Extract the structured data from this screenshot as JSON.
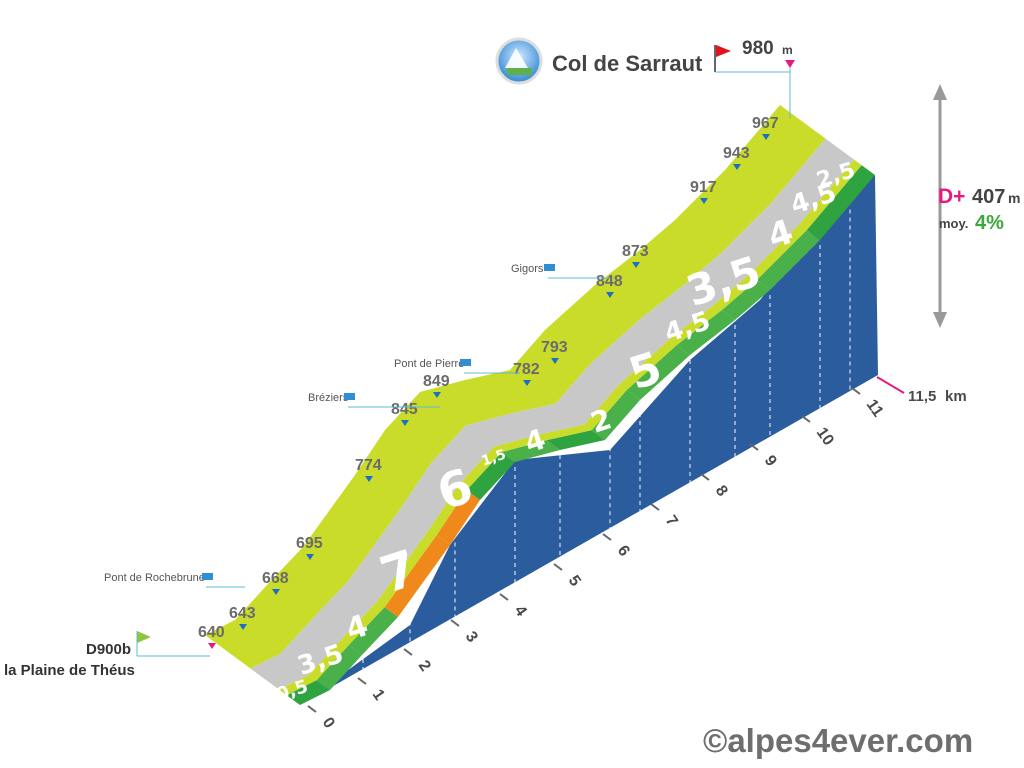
{
  "summit": {
    "name": "Col de Sarraut",
    "altitude": "980",
    "unit": "m"
  },
  "start": {
    "road": "D900b",
    "place": "la Plaine de Théus",
    "altitude": "640"
  },
  "totals": {
    "gain_label": "D+",
    "gain": "407",
    "gain_unit": "m",
    "avg_label": "moy.",
    "avg": "4%"
  },
  "distance": {
    "value": "11,5",
    "unit": "km"
  },
  "watermark": "©alpes4ever.com",
  "colors": {
    "gentle": "#2ea33f",
    "moderate": "#4ab04a",
    "steep": "#f0891c",
    "side": "#2b5d9e",
    "road": "#c8c8c8",
    "rim": "#c9dc2a",
    "accent": "#e6197f",
    "avg": "#3aa83a"
  },
  "chart_data": {
    "type": "area",
    "title": "Col de Sarraut",
    "x_label": "km",
    "km_ticks": [
      "0",
      "1",
      "2",
      "3",
      "4",
      "5",
      "6",
      "7",
      "8",
      "9",
      "10",
      "11"
    ],
    "gradient_per_km": [
      {
        "km": "0-0.5",
        "grade": "0,5",
        "color": "gentle"
      },
      {
        "km": "0.5-1",
        "grade": "3,5",
        "color": "moderate"
      },
      {
        "km": "1-2",
        "grade": "4",
        "color": "moderate"
      },
      {
        "km": "2-3",
        "grade": "7",
        "color": "steep"
      },
      {
        "km": "3-4",
        "grade": "6",
        "color": "steep"
      },
      {
        "km": "4-4.5",
        "grade": "1,5",
        "color": "gentle"
      },
      {
        "km": "4.5-5.5",
        "grade": "4",
        "color": "moderate"
      },
      {
        "km": "5.5-6",
        "grade": "2",
        "color": "gentle"
      },
      {
        "km": "6-7",
        "grade": "5",
        "color": "moderate"
      },
      {
        "km": "7-8",
        "grade": "4,5",
        "color": "moderate"
      },
      {
        "km": "8-9",
        "grade": "3,5",
        "color": "moderate"
      },
      {
        "km": "9-10",
        "grade": "4",
        "color": "moderate"
      },
      {
        "km": "10-11",
        "grade": "4,5",
        "color": "moderate"
      },
      {
        "km": "11-11.5",
        "grade": "2,5",
        "color": "gentle"
      }
    ],
    "altitude_markers": [
      "640",
      "643",
      "668",
      "695",
      "774",
      "845",
      "849",
      "782",
      "793",
      "848",
      "873",
      "917",
      "943",
      "967",
      "980"
    ],
    "places": [
      {
        "name": "Pont de Rochebrune",
        "altitude": "668"
      },
      {
        "name": "Bréziers",
        "altitude": "845"
      },
      {
        "name": "Pont de Pierre",
        "altitude": "782"
      },
      {
        "name": "Gigors",
        "altitude": "848"
      }
    ]
  }
}
